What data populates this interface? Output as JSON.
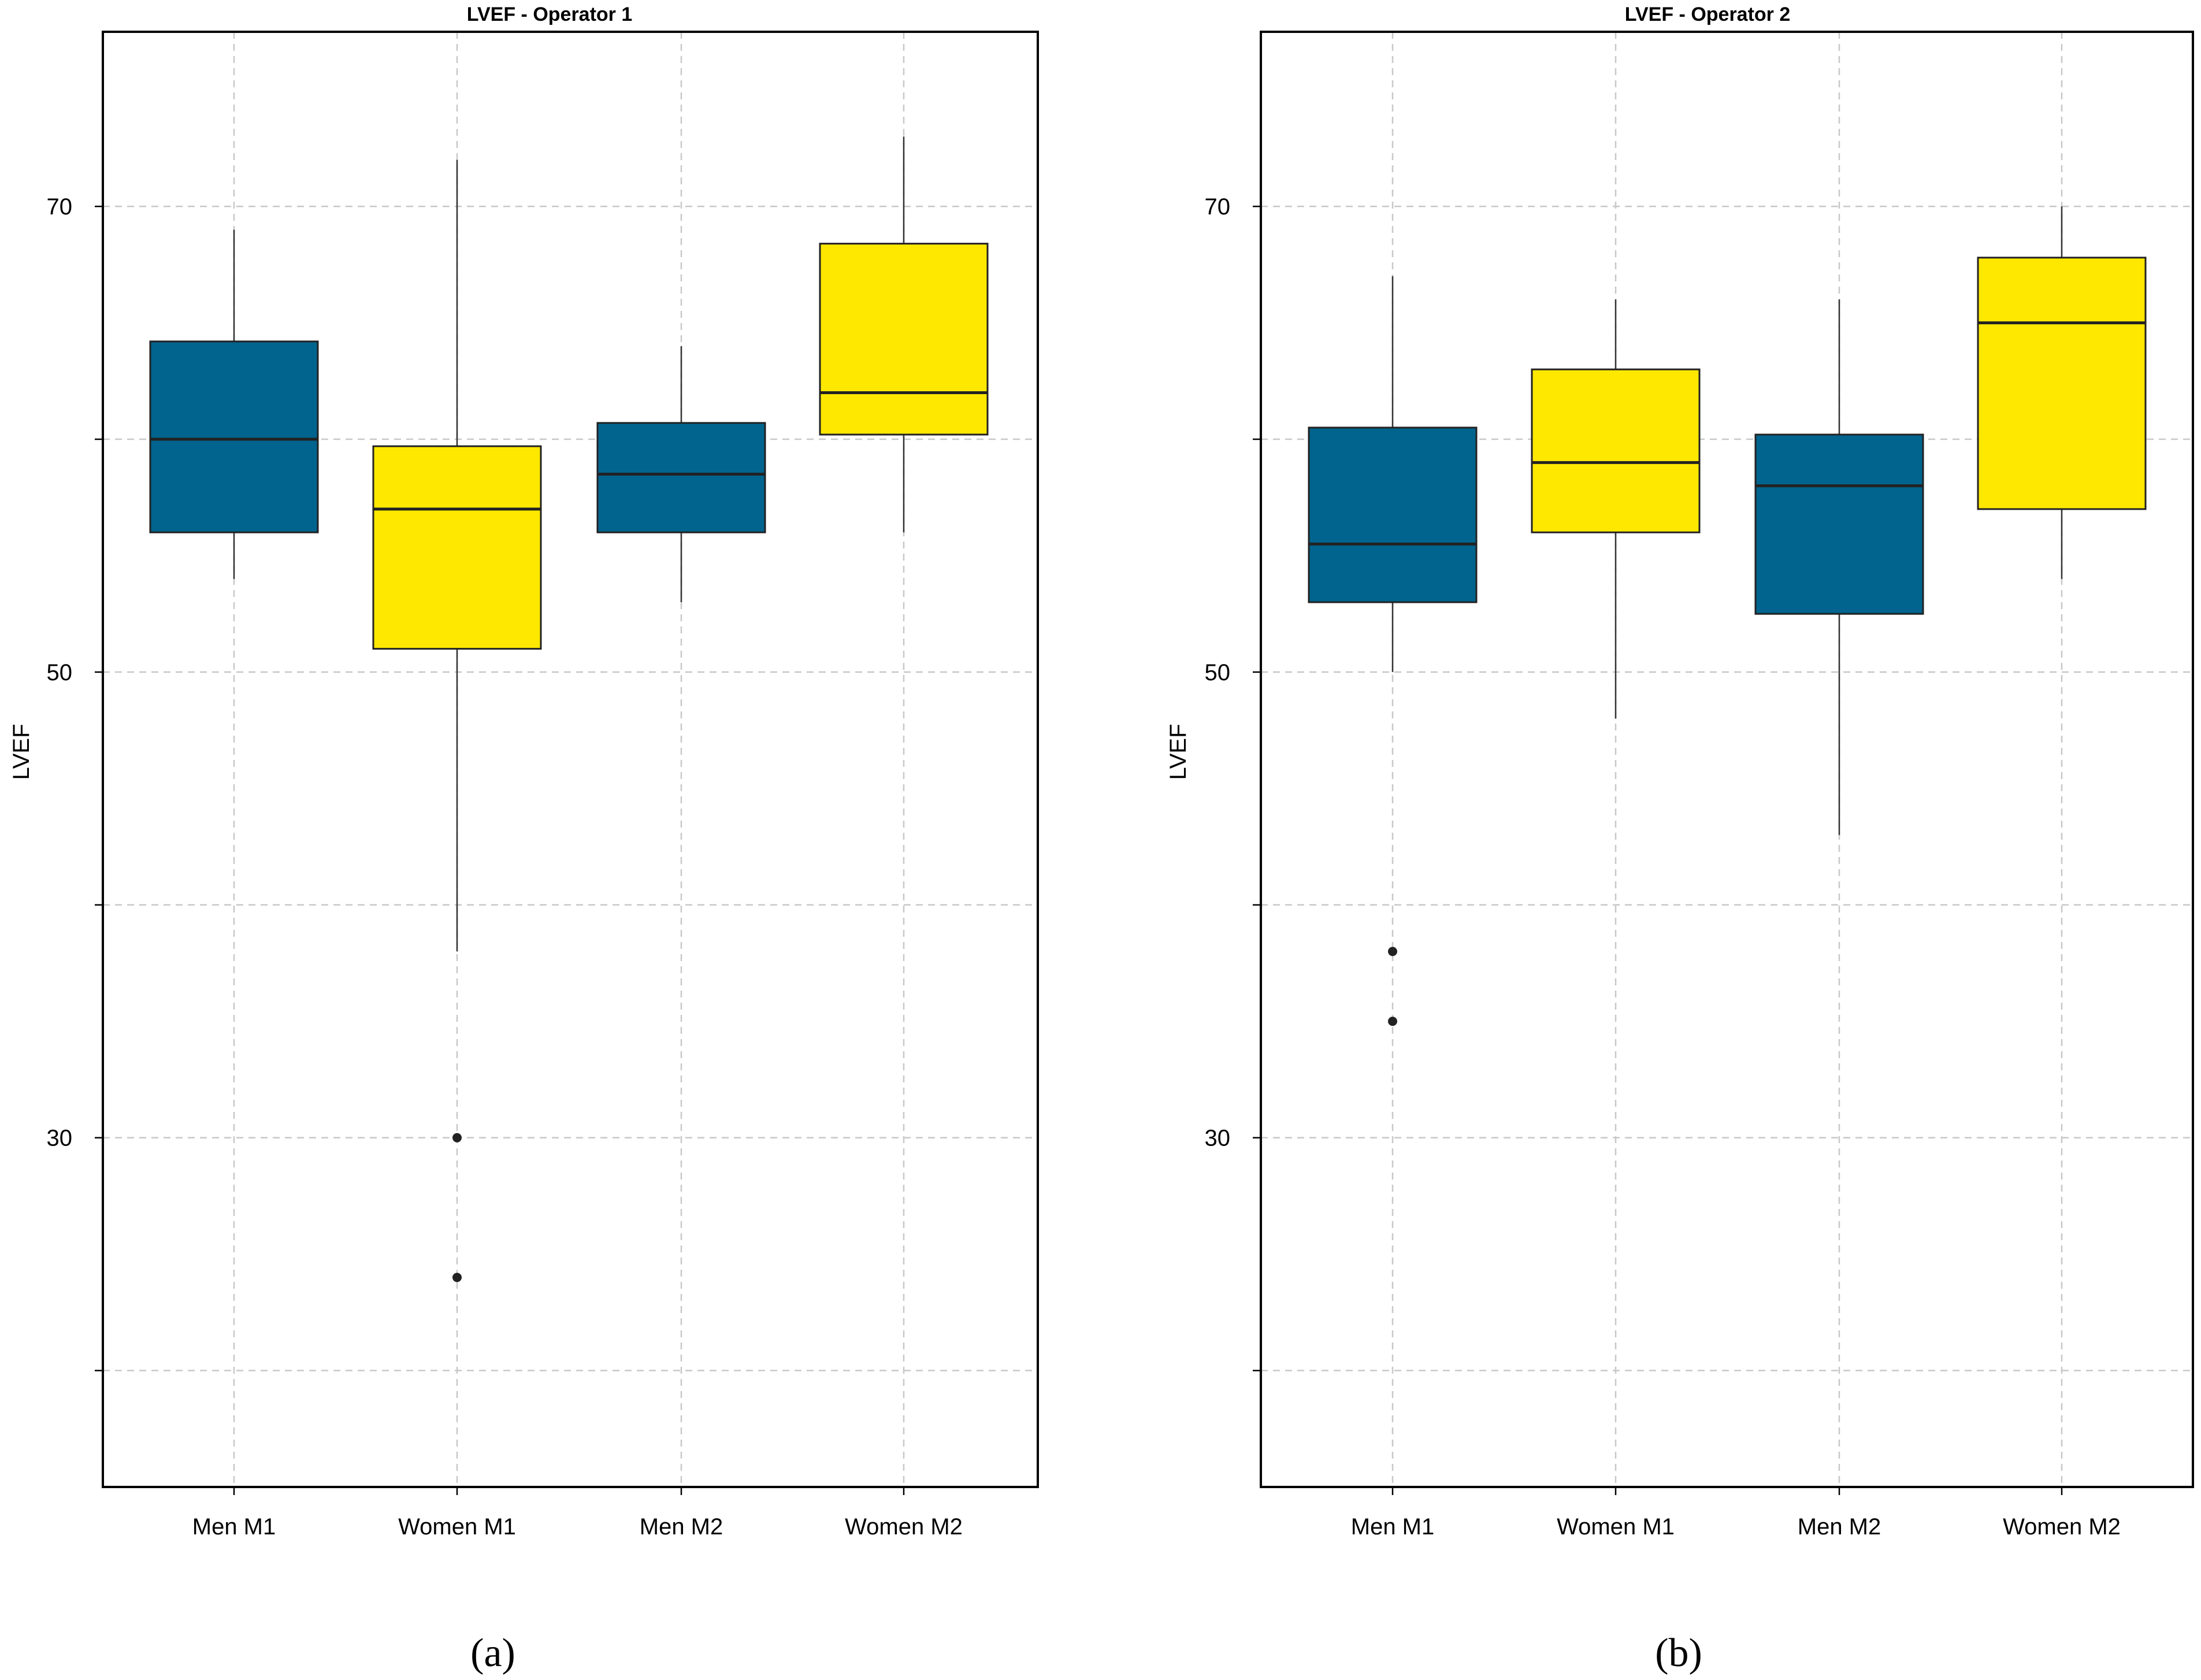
{
  "chart_data": [
    {
      "type": "boxplot",
      "title": "LVEF - Operator 1",
      "ylabel": "LVEF",
      "xlabel": "",
      "ylim": [
        15,
        77.5
      ],
      "yticks": [
        70,
        50,
        30
      ],
      "gridlines_y": [
        20,
        30,
        40,
        50,
        60,
        70
      ],
      "grid": "dashed",
      "categories": [
        "Men M1",
        "Women M1",
        "Men M2",
        "Women M2"
      ],
      "colors": [
        "#00648E",
        "#FFE800",
        "#00648E",
        "#FFE800"
      ],
      "boxes": [
        {
          "label": "Men M1",
          "whisker_low": 54.0,
          "q1": 56.0,
          "median": 60.0,
          "q3": 64.2,
          "whisker_high": 69.0,
          "outliers": []
        },
        {
          "label": "Women M1",
          "whisker_low": 38.0,
          "q1": 51.0,
          "median": 57.0,
          "q3": 59.7,
          "whisker_high": 72.0,
          "outliers": [
            30.0,
            24.0
          ]
        },
        {
          "label": "Men M2",
          "whisker_low": 53.0,
          "q1": 56.0,
          "median": 58.5,
          "q3": 60.7,
          "whisker_high": 64.0,
          "outliers": []
        },
        {
          "label": "Women M2",
          "whisker_low": 56.0,
          "q1": 60.2,
          "median": 62.0,
          "q3": 68.4,
          "whisker_high": 73.0,
          "outliers": []
        }
      ],
      "panel_label": "(a)"
    },
    {
      "type": "boxplot",
      "title": "LVEF - Operator 2",
      "ylabel": "LVEF",
      "xlabel": "",
      "ylim": [
        15,
        77.5
      ],
      "yticks": [
        70,
        50,
        30
      ],
      "gridlines_y": [
        20,
        30,
        40,
        50,
        60,
        70
      ],
      "grid": "dashed",
      "categories": [
        "Men M1",
        "Women M1",
        "Men M2",
        "Women M2"
      ],
      "colors": [
        "#00648E",
        "#FFE800",
        "#00648E",
        "#FFE800"
      ],
      "boxes": [
        {
          "label": "Men M1",
          "whisker_low": 50.0,
          "q1": 53.0,
          "median": 55.5,
          "q3": 60.5,
          "whisker_high": 67.0,
          "outliers": [
            38.0,
            35.0
          ]
        },
        {
          "label": "Women M1",
          "whisker_low": 48.0,
          "q1": 56.0,
          "median": 59.0,
          "q3": 63.0,
          "whisker_high": 66.0,
          "outliers": []
        },
        {
          "label": "Men M2",
          "whisker_low": 43.0,
          "q1": 52.5,
          "median": 58.0,
          "q3": 60.2,
          "whisker_high": 66.0,
          "outliers": []
        },
        {
          "label": "Women M2",
          "whisker_low": 54.0,
          "q1": 57.0,
          "median": 65.0,
          "q3": 67.8,
          "whisker_high": 70.0,
          "outliers": []
        }
      ],
      "panel_label": "(b)"
    }
  ]
}
